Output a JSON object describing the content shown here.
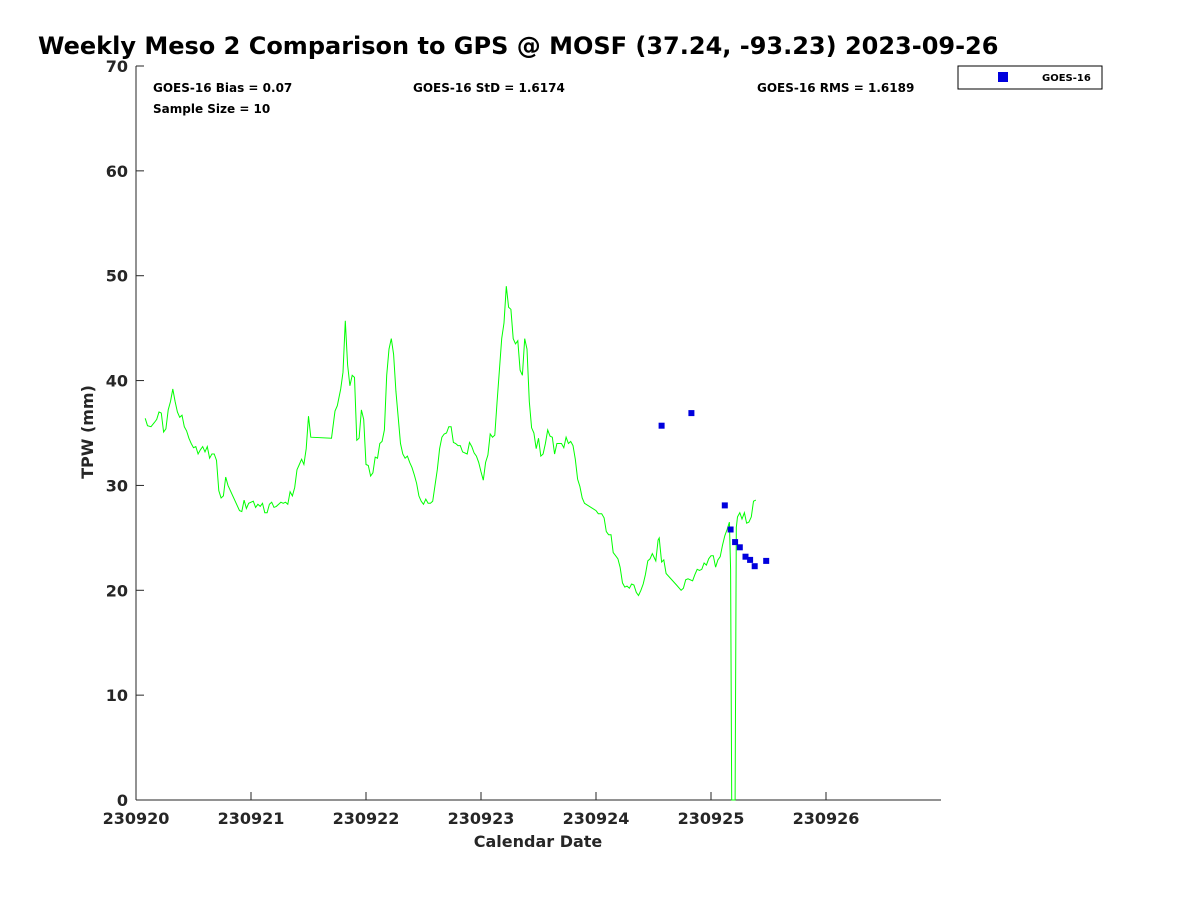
{
  "chart_data": {
    "type": "scatter",
    "title": "Weekly Meso 2 Comparison to GPS @ MOSF (37.24, -93.23) 2023-09-26",
    "xlabel": "Calendar Date",
    "ylabel": "TPW (mm)",
    "xlim": [
      230920,
      230927
    ],
    "ylim": [
      0,
      70
    ],
    "x_ticks": [
      "230920",
      "230921",
      "230922",
      "230923",
      "230924",
      "230925",
      "230926"
    ],
    "y_ticks": [
      "0",
      "10",
      "20",
      "30",
      "40",
      "50",
      "60",
      "70"
    ],
    "grid": false,
    "legend_position": "top-right, outside plot",
    "stats": {
      "bias": "GOES-16 Bias = 0.07",
      "std": "GOES-16 StD = 1.6174",
      "rms": "GOES-16 RMS = 1.6189",
      "sample": "Sample Size = 10"
    },
    "series": [
      {
        "name": "GPS",
        "kind": "line",
        "color": "#00ff00",
        "points": [
          [
            230920.08,
            36.4
          ],
          [
            230920.1,
            35.7
          ],
          [
            230920.13,
            35.6
          ],
          [
            230920.16,
            36.0
          ],
          [
            230920.18,
            36.3
          ],
          [
            230920.2,
            37.0
          ],
          [
            230920.22,
            36.9
          ],
          [
            230920.24,
            35.1
          ],
          [
            230920.26,
            35.4
          ],
          [
            230920.28,
            37.2
          ],
          [
            230920.3,
            38.0
          ],
          [
            230920.32,
            39.2
          ],
          [
            230920.34,
            38.0
          ],
          [
            230920.36,
            37.0
          ],
          [
            230920.38,
            36.5
          ],
          [
            230920.4,
            36.7
          ],
          [
            230920.42,
            35.6
          ],
          [
            230920.44,
            35.2
          ],
          [
            230920.46,
            34.5
          ],
          [
            230920.48,
            34.0
          ],
          [
            230920.5,
            33.6
          ],
          [
            230920.52,
            33.7
          ],
          [
            230920.54,
            33.0
          ],
          [
            230920.56,
            33.4
          ],
          [
            230920.58,
            33.7
          ],
          [
            230920.6,
            33.2
          ],
          [
            230920.62,
            33.7
          ],
          [
            230920.64,
            32.6
          ],
          [
            230920.66,
            33.0
          ],
          [
            230920.68,
            33.0
          ],
          [
            230920.7,
            32.4
          ],
          [
            230920.72,
            29.5
          ],
          [
            230920.74,
            28.8
          ],
          [
            230920.76,
            29.0
          ],
          [
            230920.78,
            30.8
          ],
          [
            230920.8,
            30.0
          ],
          [
            230920.9,
            27.6
          ],
          [
            230920.92,
            27.5
          ],
          [
            230920.94,
            28.6
          ],
          [
            230920.96,
            27.8
          ],
          [
            230920.98,
            28.3
          ],
          [
            230921.02,
            28.5
          ],
          [
            230921.04,
            27.9
          ],
          [
            230921.06,
            28.2
          ],
          [
            230921.08,
            28.0
          ],
          [
            230921.1,
            28.3
          ],
          [
            230921.12,
            27.4
          ],
          [
            230921.14,
            27.4
          ],
          [
            230921.16,
            28.2
          ],
          [
            230921.18,
            28.4
          ],
          [
            230921.2,
            27.9
          ],
          [
            230921.22,
            28.0
          ],
          [
            230921.26,
            28.4
          ],
          [
            230921.28,
            28.3
          ],
          [
            230921.3,
            28.4
          ],
          [
            230921.32,
            28.2
          ],
          [
            230921.34,
            29.4
          ],
          [
            230921.36,
            29.0
          ],
          [
            230921.38,
            29.8
          ],
          [
            230921.4,
            31.5
          ],
          [
            230921.42,
            32.0
          ],
          [
            230921.44,
            32.5
          ],
          [
            230921.46,
            32.0
          ],
          [
            230921.48,
            33.5
          ],
          [
            230921.5,
            36.6
          ],
          [
            230921.52,
            34.6
          ],
          [
            230921.7,
            34.5
          ],
          [
            230921.73,
            37.1
          ],
          [
            230921.75,
            37.6
          ],
          [
            230921.78,
            39.2
          ],
          [
            230921.8,
            40.8
          ],
          [
            230921.82,
            45.7
          ],
          [
            230921.84,
            41.5
          ],
          [
            230921.86,
            39.5
          ],
          [
            230921.88,
            40.5
          ],
          [
            230921.9,
            40.3
          ],
          [
            230921.92,
            34.3
          ],
          [
            230921.94,
            34.5
          ],
          [
            230921.96,
            37.2
          ],
          [
            230921.98,
            36.3
          ],
          [
            230922.0,
            32.0
          ],
          [
            230922.02,
            31.9
          ],
          [
            230922.04,
            30.9
          ],
          [
            230922.06,
            31.2
          ],
          [
            230922.08,
            32.7
          ],
          [
            230922.1,
            32.6
          ],
          [
            230922.12,
            34.0
          ],
          [
            230922.14,
            34.2
          ],
          [
            230922.16,
            35.3
          ],
          [
            230922.18,
            40.5
          ],
          [
            230922.2,
            43.0
          ],
          [
            230922.22,
            44.0
          ],
          [
            230922.24,
            42.5
          ],
          [
            230922.26,
            39.0
          ],
          [
            230922.28,
            36.5
          ],
          [
            230922.3,
            34.0
          ],
          [
            230922.32,
            33.0
          ],
          [
            230922.34,
            32.6
          ],
          [
            230922.36,
            32.8
          ],
          [
            230922.38,
            32.2
          ],
          [
            230922.4,
            31.7
          ],
          [
            230922.42,
            31.0
          ],
          [
            230922.44,
            30.2
          ],
          [
            230922.46,
            29.0
          ],
          [
            230922.48,
            28.5
          ],
          [
            230922.5,
            28.2
          ],
          [
            230922.52,
            28.7
          ],
          [
            230922.54,
            28.3
          ],
          [
            230922.56,
            28.3
          ],
          [
            230922.58,
            28.5
          ],
          [
            230922.62,
            31.5
          ],
          [
            230922.64,
            33.5
          ],
          [
            230922.66,
            34.6
          ],
          [
            230922.68,
            34.9
          ],
          [
            230922.7,
            35.0
          ],
          [
            230922.72,
            35.6
          ],
          [
            230922.74,
            35.6
          ],
          [
            230922.76,
            34.1
          ],
          [
            230922.78,
            34.0
          ],
          [
            230922.8,
            33.8
          ],
          [
            230922.82,
            33.8
          ],
          [
            230922.84,
            33.2
          ],
          [
            230922.88,
            33.0
          ],
          [
            230922.9,
            34.1
          ],
          [
            230922.92,
            33.7
          ],
          [
            230922.94,
            33.1
          ],
          [
            230922.96,
            32.8
          ],
          [
            230922.98,
            32.2
          ],
          [
            230923.0,
            31.3
          ],
          [
            230923.02,
            30.5
          ],
          [
            230923.04,
            32.2
          ],
          [
            230923.06,
            32.9
          ],
          [
            230923.08,
            34.9
          ],
          [
            230923.1,
            34.6
          ],
          [
            230923.12,
            34.8
          ],
          [
            230923.14,
            38.0
          ],
          [
            230923.16,
            41.0
          ],
          [
            230923.18,
            44.0
          ],
          [
            230923.2,
            45.5
          ],
          [
            230923.22,
            49.0
          ],
          [
            230923.24,
            47.0
          ],
          [
            230923.26,
            46.8
          ],
          [
            230923.28,
            44.0
          ],
          [
            230923.3,
            43.5
          ],
          [
            230923.32,
            43.8
          ],
          [
            230923.34,
            41.0
          ],
          [
            230923.36,
            40.5
          ],
          [
            230923.38,
            44.0
          ],
          [
            230923.4,
            43.0
          ],
          [
            230923.42,
            38.0
          ],
          [
            230923.44,
            35.5
          ],
          [
            230923.46,
            35.0
          ],
          [
            230923.48,
            33.5
          ],
          [
            230923.5,
            34.5
          ],
          [
            230923.52,
            32.8
          ],
          [
            230923.54,
            33.0
          ],
          [
            230923.56,
            34.0
          ],
          [
            230923.58,
            35.3
          ],
          [
            230923.6,
            34.7
          ],
          [
            230923.62,
            34.6
          ],
          [
            230923.64,
            33.0
          ],
          [
            230923.66,
            34.0
          ],
          [
            230923.68,
            34.0
          ],
          [
            230923.7,
            34.0
          ],
          [
            230923.72,
            33.6
          ],
          [
            230923.74,
            34.6
          ],
          [
            230923.76,
            34.0
          ],
          [
            230923.78,
            34.2
          ],
          [
            230923.8,
            33.8
          ],
          [
            230923.82,
            32.5
          ],
          [
            230923.84,
            30.6
          ],
          [
            230923.86,
            29.9
          ],
          [
            230923.88,
            28.8
          ],
          [
            230923.9,
            28.3
          ],
          [
            230924.0,
            27.6
          ],
          [
            230924.02,
            27.3
          ],
          [
            230924.05,
            27.3
          ],
          [
            230924.07,
            26.9
          ],
          [
            230924.09,
            25.6
          ],
          [
            230924.11,
            25.3
          ],
          [
            230924.13,
            25.3
          ],
          [
            230924.15,
            23.6
          ],
          [
            230924.17,
            23.3
          ],
          [
            230924.19,
            23.0
          ],
          [
            230924.21,
            22.2
          ],
          [
            230924.23,
            20.7
          ],
          [
            230924.25,
            20.3
          ],
          [
            230924.27,
            20.4
          ],
          [
            230924.29,
            20.2
          ],
          [
            230924.31,
            20.6
          ],
          [
            230924.33,
            20.5
          ],
          [
            230924.35,
            19.8
          ],
          [
            230924.37,
            19.5
          ],
          [
            230924.39,
            20.0
          ],
          [
            230924.41,
            20.6
          ],
          [
            230924.43,
            21.5
          ],
          [
            230924.45,
            22.8
          ],
          [
            230924.47,
            23.0
          ],
          [
            230924.49,
            23.5
          ],
          [
            230924.52,
            22.8
          ],
          [
            230924.54,
            24.8
          ],
          [
            230924.55,
            25.0
          ],
          [
            230924.57,
            22.7
          ],
          [
            230924.59,
            22.9
          ],
          [
            230924.61,
            21.6
          ],
          [
            230924.7,
            20.5
          ],
          [
            230924.74,
            20.0
          ],
          [
            230924.76,
            20.2
          ],
          [
            230924.78,
            21.0
          ],
          [
            230924.8,
            21.1
          ],
          [
            230924.84,
            20.9
          ],
          [
            230924.86,
            21.5
          ],
          [
            230924.88,
            22.0
          ],
          [
            230924.9,
            21.9
          ],
          [
            230924.92,
            22.0
          ],
          [
            230924.94,
            22.6
          ],
          [
            230924.96,
            22.4
          ],
          [
            230924.98,
            23.0
          ],
          [
            230925.0,
            23.3
          ],
          [
            230925.02,
            23.3
          ],
          [
            230925.04,
            22.2
          ],
          [
            230925.06,
            22.9
          ],
          [
            230925.08,
            23.2
          ],
          [
            230925.1,
            24.3
          ],
          [
            230925.12,
            25.2
          ],
          [
            230925.14,
            25.8
          ],
          [
            230925.16,
            26.5
          ],
          [
            230925.17,
            22.0
          ],
          [
            230925.18,
            0.0
          ],
          [
            230925.21,
            0.0
          ],
          [
            230925.22,
            26.0
          ],
          [
            230925.23,
            27.0
          ],
          [
            230925.25,
            27.4
          ],
          [
            230925.27,
            26.8
          ],
          [
            230925.29,
            27.4
          ],
          [
            230925.31,
            26.4
          ],
          [
            230925.33,
            26.5
          ],
          [
            230925.35,
            27.0
          ],
          [
            230925.37,
            28.5
          ],
          [
            230925.39,
            28.6
          ]
        ]
      },
      {
        "name": "GOES-16",
        "kind": "scatter",
        "color": "#0000dd",
        "points": [
          [
            230924.57,
            35.7
          ],
          [
            230924.83,
            36.9
          ],
          [
            230925.12,
            28.1
          ],
          [
            230925.17,
            25.8
          ],
          [
            230925.21,
            24.6
          ],
          [
            230925.25,
            24.1
          ],
          [
            230925.3,
            23.2
          ],
          [
            230925.34,
            22.9
          ],
          [
            230925.38,
            22.3
          ],
          [
            230925.48,
            22.8
          ]
        ]
      }
    ]
  },
  "legend": {
    "label": "GOES-16",
    "marker_color": "#0000dd"
  }
}
